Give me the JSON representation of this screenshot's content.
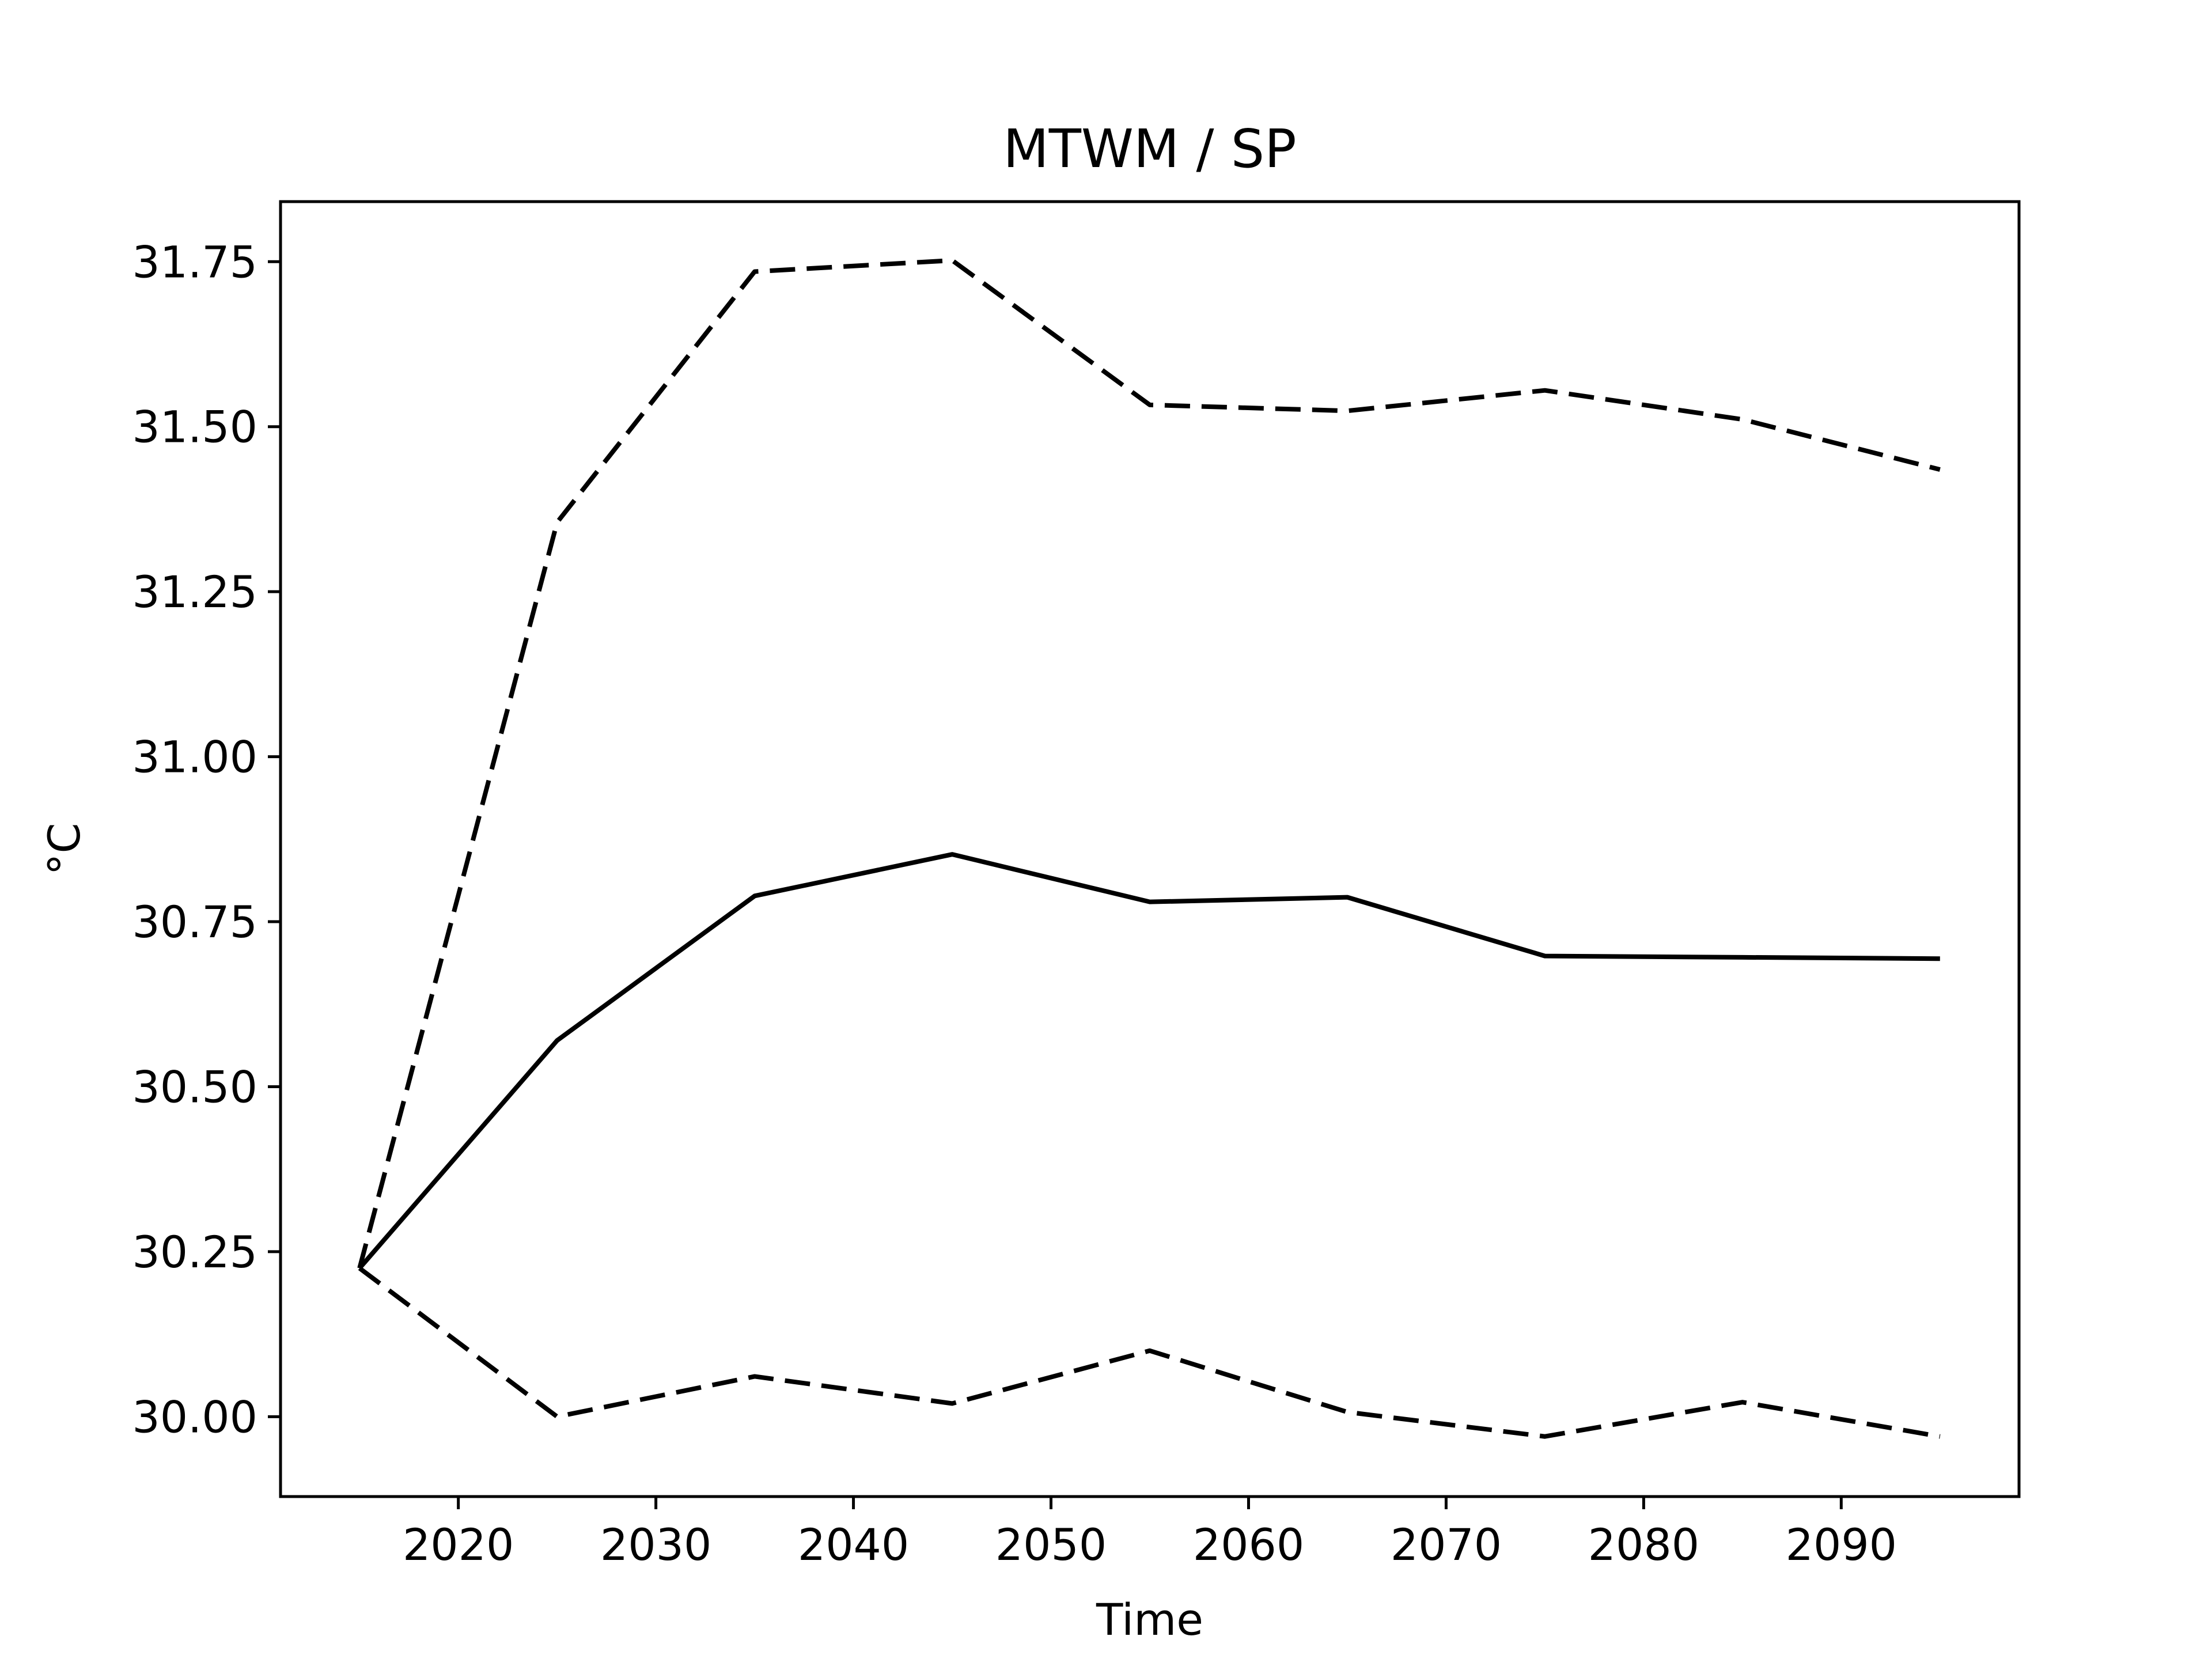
{
  "chart_data": {
    "type": "line",
    "title": "MTWM / SP",
    "xlabel": "Time",
    "ylabel": "°C",
    "x": [
      2015,
      2025,
      2035,
      2045,
      2055,
      2065,
      2075,
      2085,
      2095
    ],
    "series": [
      {
        "color": "#000000",
        "dashed": false,
        "values": [
          30.225,
          30.57,
          30.789,
          30.852,
          30.78,
          30.787,
          30.698,
          30.696,
          30.694
        ]
      },
      {
        "color": "#000000",
        "dashed": true,
        "values": [
          30.225,
          31.355,
          31.735,
          31.752,
          31.533,
          31.524,
          31.555,
          31.511,
          31.435
        ]
      },
      {
        "color": "#000000",
        "dashed": true,
        "values": [
          30.225,
          30.0,
          30.061,
          30.02,
          30.1,
          30.007,
          29.97,
          30.022,
          29.97
        ]
      }
    ],
    "xlim": [
      2011,
      2099
    ],
    "xticks": [
      2020,
      2030,
      2040,
      2050,
      2060,
      2070,
      2080,
      2090
    ],
    "ylim": [
      29.879,
      31.841
    ],
    "yticks": [
      {
        "value": 30,
        "label": "30.00"
      },
      30.25,
      {
        "value": 30.5,
        "label": "30.50"
      },
      30.75,
      {
        "value": 31,
        "label": "31.00"
      },
      31.25,
      {
        "value": 31.5,
        "label": "31.50"
      },
      31.75
    ],
    "grid": false
  }
}
